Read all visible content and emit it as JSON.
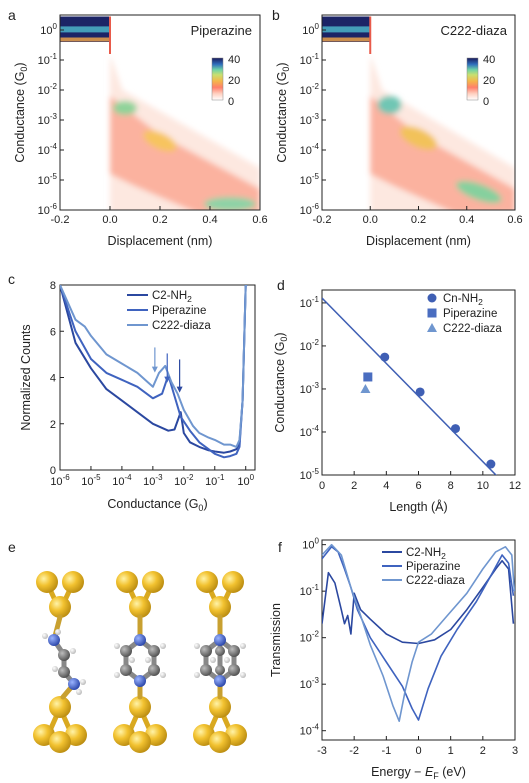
{
  "chart_data": [
    {
      "panel": "a",
      "type": "heatmap",
      "title": "Piperazine",
      "xlabel": "Displacement (nm)",
      "ylabel": "Conductance (G",
      "ylabel_sub": "0",
      "xlim": [
        -0.2,
        0.6
      ],
      "ylog_range": [
        -6,
        0.5
      ],
      "xticks": [
        "-0.2",
        "0.0",
        "0.2",
        "0.4",
        "0.6"
      ],
      "yticks": [
        {
          "base": "10",
          "exp": "0"
        },
        {
          "base": "10",
          "exp": "-1"
        },
        {
          "base": "10",
          "exp": "-2"
        },
        {
          "base": "10",
          "exp": "-3"
        },
        {
          "base": "10",
          "exp": "-4"
        },
        {
          "base": "10",
          "exp": "-5"
        },
        {
          "base": "10",
          "exp": "-6"
        }
      ],
      "colorbar_ticks": [
        "40",
        "20",
        "0"
      ],
      "title_color": "#3a5fb0"
    },
    {
      "panel": "b",
      "type": "heatmap",
      "title": "C222-diaza",
      "xlabel": "Displacement (nm)",
      "ylabel": "Conductance (G",
      "ylabel_sub": "0",
      "xlim": [
        -0.2,
        0.6
      ],
      "ylog_range": [
        -6,
        0.5
      ],
      "xticks": [
        "-0.2",
        "0.0",
        "0.2",
        "0.4",
        "0.6"
      ],
      "yticks": [
        {
          "base": "10",
          "exp": "0"
        },
        {
          "base": "10",
          "exp": "-1"
        },
        {
          "base": "10",
          "exp": "-2"
        },
        {
          "base": "10",
          "exp": "-3"
        },
        {
          "base": "10",
          "exp": "-4"
        },
        {
          "base": "10",
          "exp": "-5"
        },
        {
          "base": "10",
          "exp": "-6"
        }
      ],
      "colorbar_ticks": [
        "40",
        "20",
        "0"
      ],
      "title_color": "#6f96cf"
    },
    {
      "panel": "c",
      "type": "line",
      "xlabel": "Conductance (G",
      "xlabel_sub": "0",
      "ylabel": "Normalized Counts",
      "xlog_range": [
        -6,
        0.3
      ],
      "ylim": [
        0,
        8
      ],
      "xticks": [
        {
          "base": "10",
          "exp": "-6"
        },
        {
          "base": "10",
          "exp": "-5"
        },
        {
          "base": "10",
          "exp": "-4"
        },
        {
          "base": "10",
          "exp": "-3"
        },
        {
          "base": "10",
          "exp": "-2"
        },
        {
          "base": "10",
          "exp": "-1"
        },
        {
          "base": "10",
          "exp": "0"
        }
      ],
      "yticks": [
        "0",
        "2",
        "4",
        "6",
        "8"
      ],
      "series": [
        {
          "name": "C2-NH",
          "name_sub": "2",
          "color": "#2b48a0",
          "x": [
            -6,
            -5.5,
            -5,
            -4.5,
            -4,
            -3.5,
            -3,
            -2.5,
            -2.3,
            -2.1,
            -2,
            -1.8,
            -1.5,
            -1.2,
            -1,
            -0.7,
            -0.5,
            -0.3,
            -0.2,
            -0.1,
            0,
            0.05
          ],
          "y": [
            8,
            5.5,
            4.4,
            3.5,
            3.0,
            2.5,
            2.0,
            1.7,
            1.75,
            2.5,
            1.6,
            1.2,
            1.0,
            0.85,
            0.8,
            0.75,
            0.8,
            0.9,
            1.2,
            3,
            8,
            8
          ]
        },
        {
          "name": "Piperazine",
          "color": "#3f63bf",
          "x": [
            -6,
            -5.5,
            -5,
            -4.5,
            -4,
            -3.5,
            -3,
            -2.7,
            -2.5,
            -2.3,
            -2.1,
            -1.8,
            -1.5,
            -1.2,
            -1,
            -0.7,
            -0.5,
            -0.3,
            -0.2,
            -0.1,
            0,
            0.05
          ],
          "y": [
            8,
            6,
            4.8,
            4.2,
            3.9,
            3.6,
            3.1,
            3.3,
            4.1,
            3.2,
            2.3,
            1.7,
            1.2,
            0.9,
            0.7,
            0.55,
            0.6,
            0.7,
            1.0,
            3,
            8,
            8
          ]
        },
        {
          "name": "C222-diaza",
          "color": "#6f96cf",
          "x": [
            -6,
            -5.5,
            -5.2,
            -5,
            -4.5,
            -4,
            -3.5,
            -3,
            -2.8,
            -2.6,
            -2.4,
            -2.2,
            -2,
            -1.7,
            -1.5,
            -1.2,
            -1,
            -0.7,
            -0.5,
            -0.3,
            -0.2,
            -0.1,
            0,
            0.05
          ],
          "y": [
            8,
            6.5,
            6.2,
            5.8,
            5.0,
            4.6,
            4.2,
            3.6,
            4.2,
            4.5,
            3.8,
            3.3,
            2.6,
            1.9,
            1.6,
            1.4,
            1.3,
            1.1,
            1.1,
            1.0,
            1.3,
            3,
            8,
            8
          ]
        }
      ],
      "arrows_at": [
        -3,
        -2.6,
        -2.2
      ]
    },
    {
      "panel": "d",
      "type": "scatter",
      "xlabel": "Length (Å)",
      "ylabel": "Conductance (G",
      "ylabel_sub": "0",
      "xlim": [
        0,
        12
      ],
      "ylog_range": [
        -5,
        -0.7
      ],
      "xticks": [
        "0",
        "2",
        "4",
        "6",
        "8",
        "10",
        "12"
      ],
      "yticks": [
        {
          "base": "10",
          "exp": "-1"
        },
        {
          "base": "10",
          "exp": "-2"
        },
        {
          "base": "10",
          "exp": "-3"
        },
        {
          "base": "10",
          "exp": "-4"
        },
        {
          "base": "10",
          "exp": "-5"
        }
      ],
      "series": [
        {
          "name": "Cn-NH",
          "name_sub": "2",
          "marker": "circle",
          "color": "#3f5fb4",
          "x": [
            3.9,
            6.1,
            8.3,
            10.5
          ],
          "y": [
            0.0055,
            0.00085,
            0.00012,
            1.8e-05
          ]
        },
        {
          "name": "Piperazine",
          "marker": "square",
          "color": "#4a6dc0",
          "x": [
            2.85
          ],
          "y": [
            0.0019
          ]
        },
        {
          "name": "C222-diaza",
          "marker": "triangle",
          "color": "#6f96cf",
          "x": [
            2.7
          ],
          "y": [
            0.001
          ]
        }
      ],
      "fit": {
        "x": [
          0,
          11
        ],
        "y": [
          0.13,
          8.5e-06
        ]
      }
    },
    {
      "panel": "f",
      "type": "line",
      "xlabel": "Energy − ",
      "xlabel_var": "E",
      "xlabel_sub": "F",
      "xlabel_unit": " (eV)",
      "ylabel": "Transmission",
      "xlim": [
        -3,
        3
      ],
      "ylog_range": [
        -4.2,
        0.1
      ],
      "xticks": [
        "-3",
        "-2",
        "-1",
        "0",
        "1",
        "2",
        "3"
      ],
      "yticks": [
        {
          "base": "10",
          "exp": "0"
        },
        {
          "base": "10",
          "exp": "-1"
        },
        {
          "base": "10",
          "exp": "-2"
        },
        {
          "base": "10",
          "exp": "-3"
        },
        {
          "base": "10",
          "exp": "-4"
        }
      ],
      "series": [
        {
          "name": "C2-NH",
          "name_sub": "2",
          "color": "#2b48a0",
          "x": [
            -3,
            -2.8,
            -2.6,
            -2.4,
            -2.3,
            -2.2,
            -2.1,
            -2.0,
            -1.8,
            -1.5,
            -1.0,
            -0.5,
            0,
            0.5,
            1.0,
            1.5,
            2.0,
            2.4,
            2.6,
            2.8,
            2.95
          ],
          "y": [
            0.02,
            0.25,
            0.15,
            0.04,
            0.02,
            0.03,
            0.012,
            0.09,
            0.04,
            0.025,
            0.012,
            0.008,
            0.0075,
            0.009,
            0.015,
            0.04,
            0.12,
            0.3,
            0.45,
            0.3,
            0.02
          ]
        },
        {
          "name": "Piperazine",
          "color": "#3f63bf",
          "x": [
            -3,
            -2.7,
            -2.5,
            -2.3,
            -2.1,
            -1.9,
            -1.5,
            -1.0,
            -0.5,
            -0.2,
            0,
            0.3,
            0.7,
            1.2,
            1.8,
            2.3,
            2.6,
            2.8,
            2.95
          ],
          "y": [
            0.5,
            0.9,
            0.7,
            0.3,
            0.12,
            0.04,
            0.01,
            0.003,
            0.0009,
            0.0003,
            0.00017,
            0.0008,
            0.004,
            0.015,
            0.06,
            0.25,
            0.6,
            0.4,
            0.08
          ]
        },
        {
          "name": "C222-diaza",
          "color": "#6f96cf",
          "x": [
            -3,
            -2.7,
            -2.4,
            -2.1,
            -1.8,
            -1.5,
            -1.1,
            -0.8,
            -0.6,
            -0.4,
            -0.2,
            0,
            0.4,
            0.9,
            1.5,
            2.0,
            2.4,
            2.7,
            2.9,
            2.98
          ],
          "y": [
            0.6,
            1.0,
            0.6,
            0.12,
            0.03,
            0.007,
            0.0015,
            0.00035,
            0.00016,
            0.0008,
            0.003,
            0.008,
            0.012,
            0.03,
            0.09,
            0.3,
            0.7,
            0.9,
            0.6,
            0.1
          ]
        }
      ]
    }
  ],
  "panels": {
    "a": "a",
    "b": "b",
    "c": "c",
    "d": "d",
    "e": "e",
    "f": "f"
  },
  "colors": {
    "gold": "#e6b422",
    "nitrogen": "#3b5cc4",
    "carbon": "#6e6e6e",
    "hydrogen": "#e8e8e8"
  }
}
